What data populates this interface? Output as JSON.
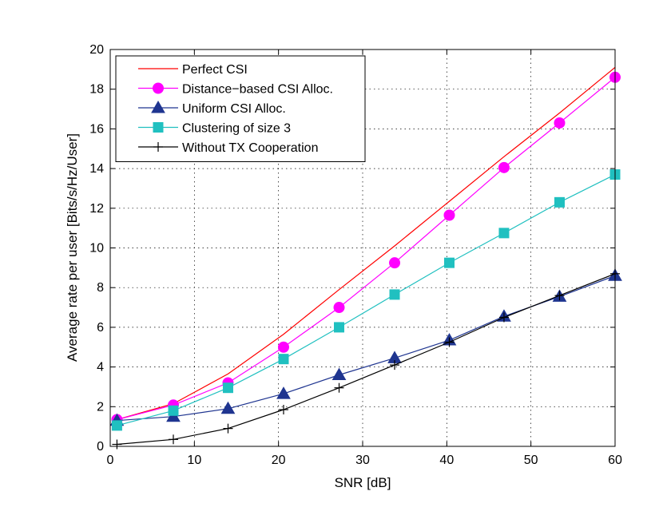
{
  "chart_data": {
    "type": "line",
    "title": "",
    "xlabel": "SNR [dB]",
    "ylabel": "Average rate per user [Bits/s/Hz/User]",
    "xlim": [
      0,
      60
    ],
    "ylim": [
      0,
      20
    ],
    "xticks": [
      0,
      10,
      20,
      30,
      40,
      50,
      60
    ],
    "yticks": [
      0,
      2,
      4,
      6,
      8,
      10,
      12,
      14,
      16,
      18,
      20
    ],
    "grid": true,
    "legend_position": "top-left",
    "series": [
      {
        "name": "Perfect CSI",
        "color": "#ff0000",
        "marker": "none",
        "x": [
          0.8,
          7.5,
          14,
          20.6,
          27.2,
          33.8,
          40.3,
          46.8,
          53.4,
          60
        ],
        "y": [
          1.35,
          2.15,
          3.65,
          5.65,
          7.9,
          10.1,
          12.35,
          14.6,
          16.8,
          19.1
        ]
      },
      {
        "name": "Distance−based CSI Alloc.",
        "color": "#ff00ff",
        "marker": "circle",
        "x": [
          0.8,
          7.5,
          14,
          20.6,
          27.2,
          33.8,
          40.3,
          46.8,
          53.4,
          60
        ],
        "y": [
          1.35,
          2.08,
          3.2,
          5.0,
          7.0,
          9.25,
          11.65,
          14.05,
          16.3,
          18.6
        ]
      },
      {
        "name": "Uniform  CSI Alloc.",
        "color": "#1f3590",
        "marker": "triangle",
        "x": [
          0.8,
          7.5,
          14,
          20.6,
          27.2,
          33.8,
          40.3,
          46.8,
          53.4,
          60
        ],
        "y": [
          1.3,
          1.5,
          1.9,
          2.65,
          3.6,
          4.45,
          5.35,
          6.55,
          7.55,
          8.6
        ]
      },
      {
        "name": "Clustering of size 3",
        "color": "#20c0c0",
        "marker": "square",
        "x": [
          0.8,
          7.5,
          14,
          20.6,
          27.2,
          33.8,
          40.3,
          46.8,
          53.4,
          60
        ],
        "y": [
          1.05,
          1.8,
          2.95,
          4.4,
          6.0,
          7.65,
          9.25,
          10.75,
          12.3,
          13.7
        ]
      },
      {
        "name": "Without TX Cooperation",
        "color": "#000000",
        "marker": "plus",
        "x": [
          0.8,
          7.5,
          14,
          20.6,
          27.2,
          33.8,
          40.3,
          46.8,
          53.4,
          60
        ],
        "y": [
          0.1,
          0.35,
          0.9,
          1.85,
          2.95,
          4.1,
          5.25,
          6.5,
          7.6,
          8.7
        ]
      }
    ]
  }
}
